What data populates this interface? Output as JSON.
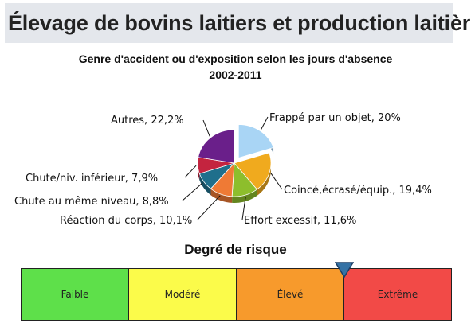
{
  "header": {
    "title": "Élevage de bovins laitiers et production laitière"
  },
  "chart_data": {
    "type": "pie",
    "title": "Genre d'accident ou d'exposition selon les jours d'absence",
    "subtitle": "2002-2011",
    "slices": [
      {
        "label": "Frappé par un objet",
        "value": 20.0,
        "display": "Frappé par un objet, 20%",
        "color": "#a9d5f5",
        "exploded": true
      },
      {
        "label": "Coincé,écrasé/équip.",
        "value": 19.4,
        "display": "Coincé,écrasé/équip., 19,4%",
        "color": "#f0aa1e"
      },
      {
        "label": "Effort excessif",
        "value": 11.6,
        "display": "Effort excessif, 11,6%",
        "color": "#8dbe2c"
      },
      {
        "label": "Réaction du corps",
        "value": 10.1,
        "display": "Réaction du corps, 10,1%",
        "color": "#ef7a35"
      },
      {
        "label": "Chute au même niveau",
        "value": 8.8,
        "display": "Chute au même niveau, 8,8%",
        "color": "#1f6f8c"
      },
      {
        "label": "Chute/niv. inférieur",
        "value": 7.9,
        "display": "Chute/niv. inférieur, 7,9%",
        "color": "#c4243f"
      },
      {
        "label": "Autres",
        "value": 22.2,
        "display": "Autres, 22,2%",
        "color": "#6a1f8a"
      }
    ]
  },
  "risk": {
    "title": "Degré de risque",
    "levels": [
      {
        "label": "Faible",
        "color": "#5ee04a"
      },
      {
        "label": "Modéré",
        "color": "#fbfb4a"
      },
      {
        "label": "Élevé",
        "color": "#f79a2c"
      },
      {
        "label": "Extrême",
        "color": "#f24a47"
      }
    ],
    "indicator_position": 0.75,
    "indicator_color": "#3572a5"
  }
}
